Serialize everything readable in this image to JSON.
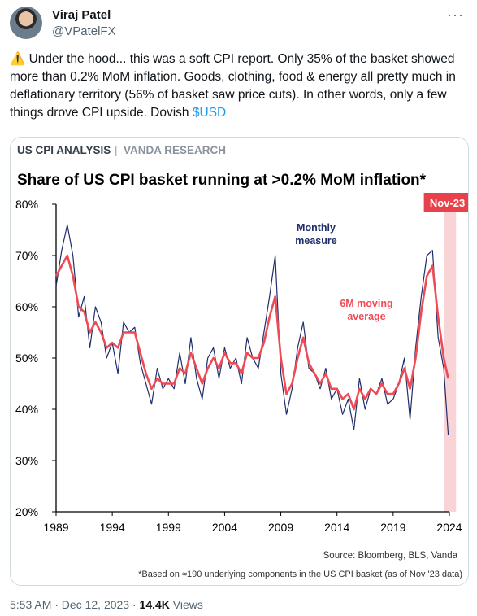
{
  "author": {
    "name": "Viraj Patel",
    "handle": "@VPatelFX"
  },
  "more_icon": "more-horizontal-icon",
  "tweet": {
    "text": "⚠️ Under the hood... this was a soft CPI report. Only 35% of the basket showed more than 0.2% MoM inflation. Goods, clothing, food & energy all pretty much in deflationary territory (56% of basket saw price cuts). In other words, only a few things drove CPI upside. Dovish ",
    "cashtag": "$USD"
  },
  "footer": {
    "time": "5:53 AM · Dec 12, 2023 · ",
    "views": "14.4K",
    "views_label": " Views"
  },
  "colors": {
    "monthly": "#1f2d6b",
    "ma": "#ef4b55",
    "highlight": "#f6c9cd",
    "nov_badge": "#e8414b"
  },
  "chart_data": {
    "type": "line",
    "header_left": "US CPI ANALYSIS",
    "header_sep": "|",
    "header_right": "VANDA RESEARCH",
    "title": "Share of US CPI basket running at >0.2% MoM inflation*",
    "highlight_label": "Nov-23",
    "ylim": [
      20,
      80
    ],
    "xlim": [
      1989,
      2024
    ],
    "y_ticks": [
      "20%",
      "30%",
      "40%",
      "50%",
      "60%",
      "70%",
      "80%"
    ],
    "x_ticks": [
      "1989",
      "1994",
      "1999",
      "2004",
      "2009",
      "2014",
      "2019",
      "2024"
    ],
    "grid": false,
    "annotations": [
      "Monthly",
      "measure",
      "6M moving",
      "average"
    ],
    "source": "Source: Bloomberg, BLS, Vanda",
    "footnote": "*Based on ≈190 underlying components in the US CPI basket (as of Nov '23 data)",
    "series": [
      {
        "kind": "monthly",
        "x": [
          1989,
          1989.5,
          1990,
          1990.5,
          1991,
          1991.5,
          1992,
          1992.5,
          1993,
          1993.5,
          1994,
          1994.5,
          1995,
          1995.5,
          1996,
          1996.5,
          1997,
          1997.5,
          1998,
          1998.5,
          1999,
          1999.5,
          2000,
          2000.5,
          2001,
          2001.5,
          2002,
          2002.5,
          2003,
          2003.5,
          2004,
          2004.5,
          2005,
          2005.5,
          2006,
          2006.5,
          2007,
          2007.5,
          2008,
          2008.5,
          2009,
          2009.5,
          2010,
          2010.5,
          2011,
          2011.5,
          2012,
          2012.5,
          2013,
          2013.5,
          2014,
          2014.5,
          2015,
          2015.5,
          2016,
          2016.5,
          2017,
          2017.5,
          2018,
          2018.5,
          2019,
          2019.5,
          2020,
          2020.5,
          2021,
          2021.5,
          2022,
          2022.5,
          2023,
          2023.5,
          2023.9
        ],
        "values": [
          64,
          71,
          76,
          70,
          58,
          62,
          52,
          60,
          57,
          50,
          53,
          47,
          57,
          55,
          56,
          49,
          45,
          41,
          48,
          44,
          46,
          44,
          51,
          45,
          54,
          46,
          42,
          50,
          52,
          46,
          52,
          48,
          50,
          45,
          54,
          50,
          48,
          55,
          62,
          70,
          47,
          39,
          44,
          52,
          57,
          48,
          47,
          44,
          48,
          42,
          44,
          39,
          42,
          36,
          46,
          40,
          44,
          43,
          46,
          41,
          42,
          45,
          50,
          38,
          52,
          62,
          70,
          71,
          54,
          48,
          35
        ]
      },
      {
        "kind": "ma",
        "x": [
          1989,
          1989.5,
          1990,
          1990.5,
          1991,
          1991.5,
          1992,
          1992.5,
          1993,
          1993.5,
          1994,
          1994.5,
          1995,
          1995.5,
          1996,
          1996.5,
          1997,
          1997.5,
          1998,
          1998.5,
          1999,
          1999.5,
          2000,
          2000.5,
          2001,
          2001.5,
          2002,
          2002.5,
          2003,
          2003.5,
          2004,
          2004.5,
          2005,
          2005.5,
          2006,
          2006.5,
          2007,
          2007.5,
          2008,
          2008.5,
          2009,
          2009.5,
          2010,
          2010.5,
          2011,
          2011.5,
          2012,
          2012.5,
          2013,
          2013.5,
          2014,
          2014.5,
          2015,
          2015.5,
          2016,
          2016.5,
          2017,
          2017.5,
          2018,
          2018.5,
          2019,
          2019.5,
          2020,
          2020.5,
          2021,
          2021.5,
          2022,
          2022.5,
          2023,
          2023.5,
          2023.9
        ],
        "values": [
          66,
          68,
          70,
          66,
          60,
          59,
          55,
          57,
          55,
          52,
          53,
          52,
          55,
          55,
          55,
          51,
          47,
          44,
          46,
          45,
          45,
          45,
          48,
          47,
          51,
          48,
          45,
          48,
          50,
          48,
          51,
          49,
          49,
          47,
          51,
          50,
          50,
          53,
          58,
          62,
          50,
          43,
          45,
          50,
          54,
          49,
          47,
          45,
          47,
          44,
          44,
          42,
          43,
          40,
          44,
          42,
          44,
          43,
          45,
          43,
          43,
          45,
          48,
          44,
          50,
          59,
          66,
          68,
          58,
          50,
          46
        ]
      }
    ]
  }
}
